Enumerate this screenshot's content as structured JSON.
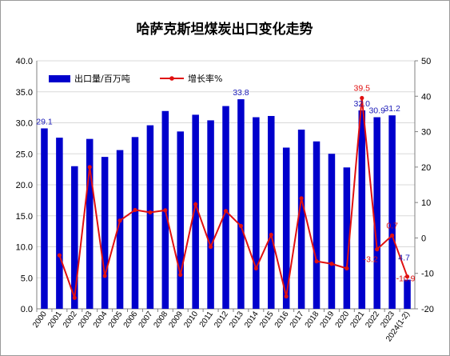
{
  "chart_data": {
    "type": "bar",
    "title": "哈萨克斯坦煤炭出口变化走势",
    "categories": [
      "2000",
      "2001",
      "2002",
      "2003",
      "2004",
      "2005",
      "2006",
      "2007",
      "2008",
      "2009",
      "2010",
      "2011",
      "2012",
      "2013",
      "2014",
      "2015",
      "2016",
      "2017",
      "2018",
      "2019",
      "2020",
      "2021",
      "2022",
      "2023",
      "2024(1-2)"
    ],
    "series": [
      {
        "name": "出口量/百万吨",
        "type": "bar",
        "axis": "left",
        "color": "#0000cc",
        "values": [
          29.1,
          27.6,
          23.0,
          27.4,
          24.5,
          25.6,
          27.7,
          29.6,
          31.9,
          28.6,
          31.3,
          30.4,
          32.7,
          33.8,
          30.9,
          31.1,
          26.0,
          28.9,
          27.0,
          25.0,
          22.8,
          32.0,
          30.9,
          31.2,
          4.7
        ]
      },
      {
        "name": "增长率%",
        "type": "line",
        "axis": "right",
        "color": "#e01010",
        "values": [
          null,
          -4.9,
          -16.9,
          20.0,
          -10.7,
          4.9,
          7.9,
          7.2,
          7.8,
          -10.4,
          9.5,
          -2.5,
          7.6,
          3.4,
          -8.6,
          0.9,
          -16.5,
          11.2,
          -6.6,
          -7.3,
          -8.6,
          39.5,
          -3.2,
          0.7,
          -10.9
        ]
      }
    ],
    "data_labels": {
      "bars": [
        {
          "index": 0,
          "text": "29.1"
        },
        {
          "index": 13,
          "text": "33.8"
        },
        {
          "index": 21,
          "text": "32.0"
        },
        {
          "index": 22,
          "text": "30.9"
        },
        {
          "index": 23,
          "text": "31.2"
        },
        {
          "index": 24,
          "text": "4.7"
        }
      ],
      "line": [
        {
          "index": 21,
          "text": "39.5"
        },
        {
          "index": 22,
          "text": "-3.2"
        },
        {
          "index": 23,
          "text": "0.7"
        },
        {
          "index": 24,
          "text": "-10.9"
        }
      ]
    },
    "y_left": {
      "min": 0,
      "max": 40,
      "step": 5,
      "tick_labels": [
        "0.0",
        "5.0",
        "10.0",
        "15.0",
        "20.0",
        "25.0",
        "30.0",
        "35.0",
        "40.0"
      ]
    },
    "y_right": {
      "min": -20,
      "max": 50,
      "step": 10,
      "tick_labels": [
        "-20",
        "-10",
        "0",
        "10",
        "20",
        "30",
        "40",
        "50"
      ]
    },
    "legend": {
      "position": "top-left",
      "items": [
        {
          "label": "出口量/百万吨",
          "marker": "bar",
          "color": "#0000cc"
        },
        {
          "label": "增长率%",
          "marker": "line-dot",
          "color": "#e01010"
        }
      ]
    },
    "grid": true,
    "xlabel": "",
    "ylabel": ""
  }
}
